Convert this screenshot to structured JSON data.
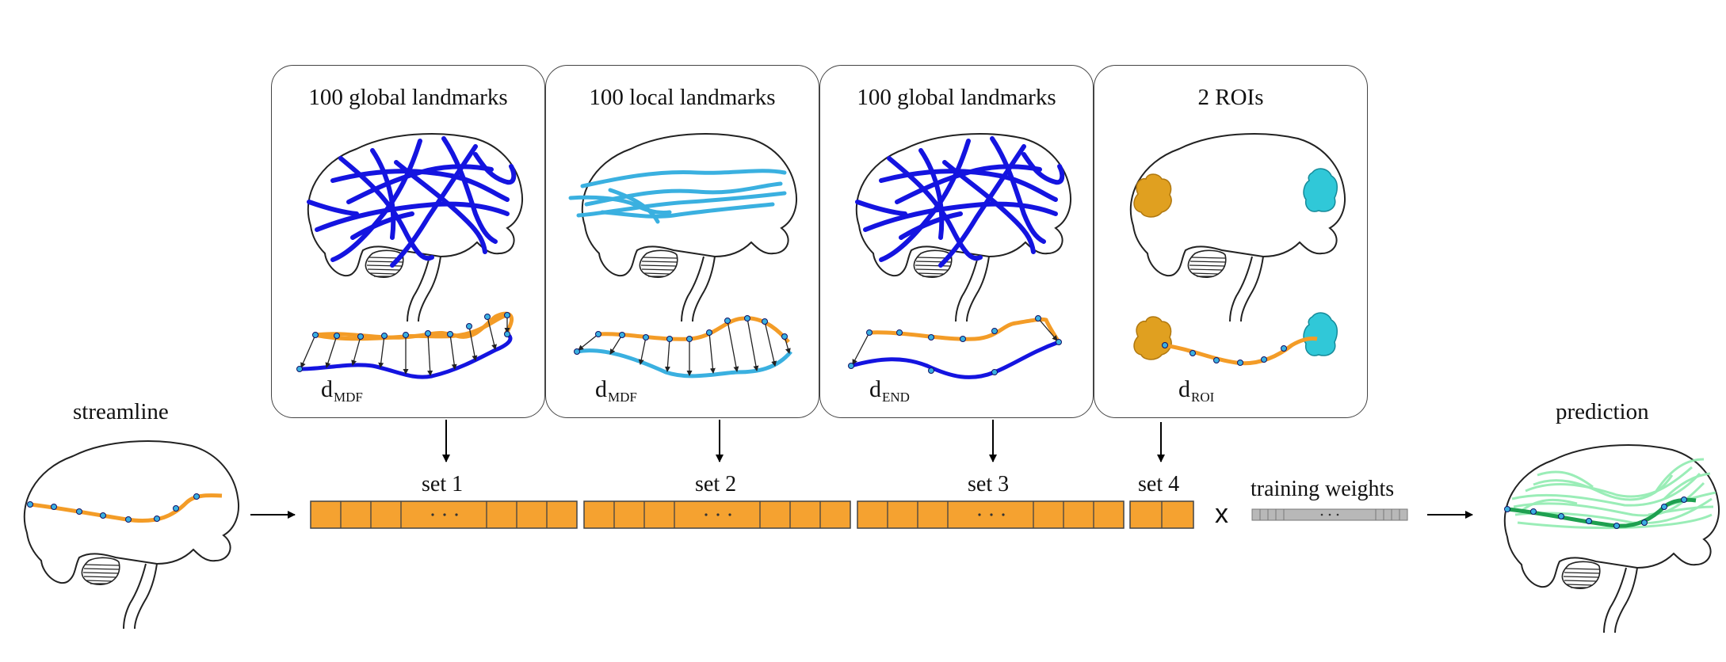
{
  "panels": [
    {
      "title": "100 global landmarks",
      "metric_main": "d",
      "metric_sub": "MDF"
    },
    {
      "title": "100 local landmarks",
      "metric_main": "d",
      "metric_sub": "MDF"
    },
    {
      "title": "100 global landmarks",
      "metric_main": "d",
      "metric_sub": "END"
    },
    {
      "title": "2 ROIs",
      "metric_main": "d",
      "metric_sub": "ROI"
    }
  ],
  "input_label": "streamline",
  "output_label": "prediction",
  "sets": [
    "set 1",
    "set 2",
    "set 3",
    "set 4"
  ],
  "weights_label": "training weights",
  "multiply_symbol": "x",
  "colors": {
    "streamline": "#f39c27",
    "global_landmark": "#1414e0",
    "local_landmark": "#3ab0e0",
    "roi_left": "#e0a020",
    "roi_right": "#30c8d8",
    "feature_box": "#f5a230",
    "weights_box": "#b0b0b0",
    "prediction_bundle": "#90ecb0",
    "prediction_core": "#1ea050"
  }
}
